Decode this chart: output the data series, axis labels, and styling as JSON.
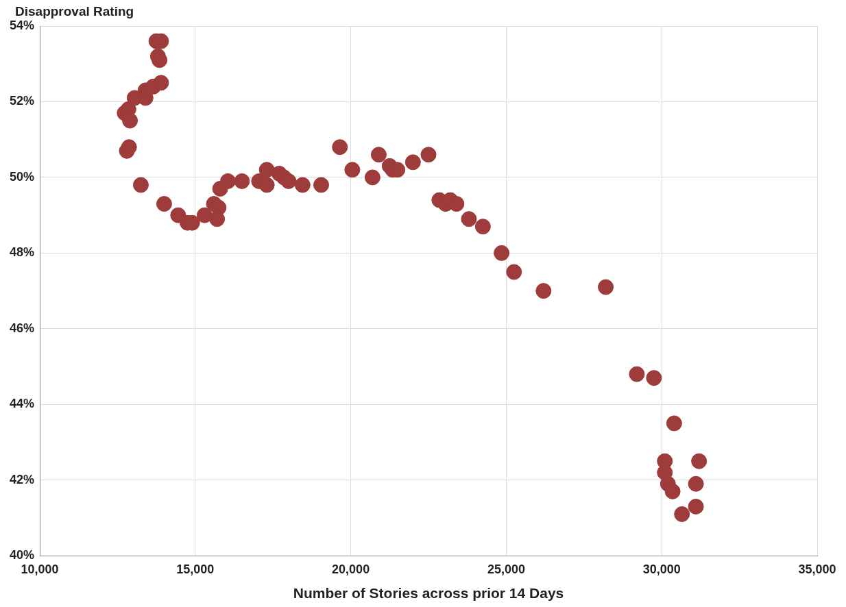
{
  "chart_data": {
    "type": "scatter",
    "title": "Disapproval Rating",
    "xlabel": "Number of Stories across prior 14 Days",
    "x": [
      12730,
      12850,
      12900,
      12800,
      12870,
      13050,
      13400,
      13400,
      13650,
      13900,
      13750,
      13900,
      13800,
      13850,
      13250,
      14000,
      14450,
      14750,
      14900,
      15300,
      15600,
      15750,
      15700,
      15800,
      16050,
      16500,
      17050,
      17300,
      17300,
      17700,
      17850,
      18000,
      18450,
      19050,
      19650,
      20050,
      20700,
      20900,
      21250,
      21350,
      21500,
      22000,
      22500,
      22850,
      23050,
      23200,
      23400,
      23800,
      24250,
      24850,
      25250,
      26200,
      28200,
      29200,
      29750,
      30400,
      30100,
      30100,
      30200,
      30350,
      30650,
      31100,
      31100,
      31200
    ],
    "series": [
      {
        "color": "#9e3b3b",
        "values": [
          51.7,
          51.8,
          51.5,
          50.7,
          50.8,
          52.1,
          52.1,
          52.3,
          52.4,
          52.5,
          53.6,
          53.6,
          53.2,
          53.1,
          49.8,
          49.3,
          49.0,
          48.8,
          48.8,
          49.0,
          49.3,
          49.2,
          48.9,
          49.7,
          49.9,
          49.9,
          49.9,
          50.2,
          49.8,
          50.1,
          50.0,
          49.9,
          49.8,
          49.8,
          50.8,
          50.2,
          50.0,
          50.6,
          50.3,
          50.2,
          50.2,
          50.4,
          50.6,
          49.4,
          49.3,
          49.4,
          49.3,
          48.9,
          48.7,
          48.0,
          47.5,
          47.0,
          47.1,
          44.8,
          44.7,
          43.5,
          42.5,
          42.2,
          41.9,
          41.7,
          41.1,
          41.3,
          41.9,
          42.5
        ]
      }
    ],
    "xlim": [
      10000,
      35000
    ],
    "xticks": [
      {
        "value": 10000,
        "label": "10,000"
      },
      {
        "value": 15000,
        "label": "15,000"
      },
      {
        "value": 20000,
        "label": "20,000"
      },
      {
        "value": 25000,
        "label": "25,000"
      },
      {
        "value": 30000,
        "label": "30,000"
      },
      {
        "value": 35000,
        "label": "35,000"
      }
    ],
    "ylim": [
      40,
      54
    ],
    "yticks": [
      {
        "value": 40,
        "label": "40%"
      },
      {
        "value": 42,
        "label": "42%"
      },
      {
        "value": 44,
        "label": "44%"
      },
      {
        "value": 46,
        "label": "46%"
      },
      {
        "value": 48,
        "label": "48%"
      },
      {
        "value": 50,
        "label": "50%"
      },
      {
        "value": 52,
        "label": "52%"
      },
      {
        "value": 54,
        "label": "54%"
      }
    ],
    "grid": true,
    "marker": "circle"
  }
}
